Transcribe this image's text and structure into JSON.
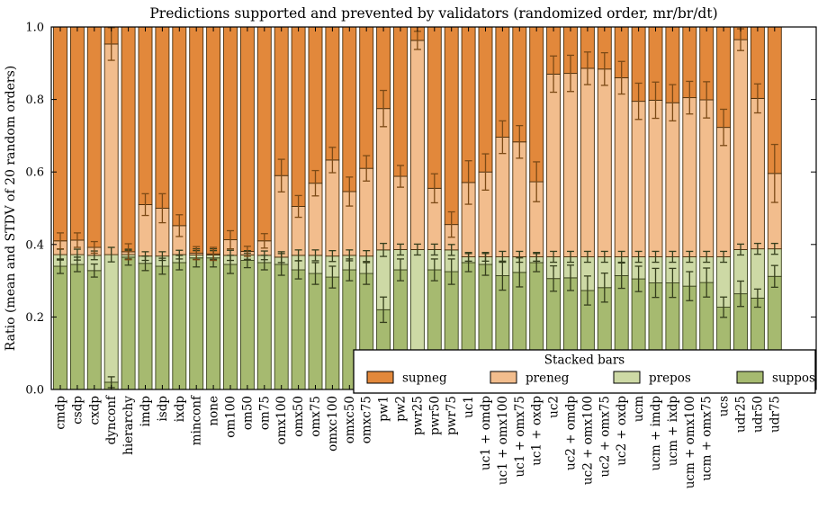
{
  "chart_data": {
    "type": "bar",
    "subtype": "stacked-vertical-with-error-bars",
    "title": "Predictions supported and prevented by validators (randomized order, mr/br/dt)",
    "xlabel": "",
    "ylabel": "Ratio (mean and STDV of 20 random orders)",
    "ylim": [
      0.0,
      1.0
    ],
    "yticks": [
      "0.0",
      "0.2",
      "0.4",
      "0.6",
      "0.8",
      "1.0"
    ],
    "grid": false,
    "legend": {
      "title": "Stacked bars",
      "position": "lower right inside axes",
      "entries": [
        "supneg",
        "preneg",
        "prepos",
        "suppos"
      ]
    },
    "stack_order_bottom_to_top": [
      "suppos",
      "prepos",
      "preneg",
      "supneg"
    ],
    "colors": {
      "supneg": "#e2883b",
      "preneg": "#f2bd8d",
      "prepos": "#cdd9a5",
      "suppos": "#a6ba70",
      "supneg_edge": "#4a2e0c",
      "preneg_edge": "#4a2e0c",
      "prepos_edge": "#3a421c",
      "suppos_edge": "#3a421c",
      "err_orange": "#7c4a16",
      "err_green": "#353e1c",
      "axis": "#000000"
    },
    "note": "Each bar stacks to 1.0. Values below are cumulative segment tops (ratios) read from the axes; err_* are STDV half-lengths of the error bar at each segment boundary.",
    "bars": [
      {
        "label": "cmdp",
        "suppos_top": 0.34,
        "prepos_top": 0.372,
        "preneg_top": 0.41,
        "supneg_top": 1.0,
        "err_suppos": 0.02,
        "err_prepos": 0.015,
        "err_preneg": 0.022
      },
      {
        "label": "csdp",
        "suppos_top": 0.345,
        "prepos_top": 0.372,
        "preneg_top": 0.412,
        "supneg_top": 1.0,
        "err_suppos": 0.02,
        "err_prepos": 0.015,
        "err_preneg": 0.02
      },
      {
        "label": "cxdp",
        "suppos_top": 0.328,
        "prepos_top": 0.37,
        "preneg_top": 0.392,
        "supneg_top": 1.0,
        "err_suppos": 0.018,
        "err_prepos": 0.012,
        "err_preneg": 0.016
      },
      {
        "label": "dynconf",
        "suppos_top": 0.02,
        "prepos_top": 0.372,
        "preneg_top": 0.953,
        "supneg_top": 1.0,
        "err_suppos": 0.015,
        "err_prepos": 0.02,
        "err_preneg": 0.045
      },
      {
        "label": "hierarchy",
        "suppos_top": 0.365,
        "prepos_top": 0.372,
        "preneg_top": 0.38,
        "supneg_top": 1.0,
        "err_suppos": 0.022,
        "err_prepos": 0.012,
        "err_preneg": 0.022
      },
      {
        "label": "imdp",
        "suppos_top": 0.348,
        "prepos_top": 0.368,
        "preneg_top": 0.51,
        "supneg_top": 1.0,
        "err_suppos": 0.02,
        "err_prepos": 0.012,
        "err_preneg": 0.03
      },
      {
        "label": "isdp",
        "suppos_top": 0.34,
        "prepos_top": 0.368,
        "preneg_top": 0.5,
        "supneg_top": 1.0,
        "err_suppos": 0.022,
        "err_prepos": 0.012,
        "err_preneg": 0.04
      },
      {
        "label": "ixdp",
        "suppos_top": 0.35,
        "prepos_top": 0.372,
        "preneg_top": 0.452,
        "supneg_top": 1.0,
        "err_suppos": 0.02,
        "err_prepos": 0.012,
        "err_preneg": 0.03
      },
      {
        "label": "minconf",
        "suppos_top": 0.363,
        "prepos_top": 0.371,
        "preneg_top": 0.376,
        "supneg_top": 1.0,
        "err_suppos": 0.025,
        "err_prepos": 0.012,
        "err_preneg": 0.018
      },
      {
        "label": "none",
        "suppos_top": 0.363,
        "prepos_top": 0.371,
        "preneg_top": 0.374,
        "supneg_top": 1.0,
        "err_suppos": 0.025,
        "err_prepos": 0.012,
        "err_preneg": 0.018
      },
      {
        "label": "om100",
        "suppos_top": 0.345,
        "prepos_top": 0.37,
        "preneg_top": 0.413,
        "supneg_top": 1.0,
        "err_suppos": 0.025,
        "err_prepos": 0.014,
        "err_preneg": 0.025
      },
      {
        "label": "om50",
        "suppos_top": 0.356,
        "prepos_top": 0.371,
        "preneg_top": 0.381,
        "supneg_top": 1.0,
        "err_suppos": 0.02,
        "err_prepos": 0.012,
        "err_preneg": 0.014
      },
      {
        "label": "om75",
        "suppos_top": 0.35,
        "prepos_top": 0.37,
        "preneg_top": 0.41,
        "supneg_top": 1.0,
        "err_suppos": 0.02,
        "err_prepos": 0.012,
        "err_preneg": 0.02
      },
      {
        "label": "omx100",
        "suppos_top": 0.345,
        "prepos_top": 0.365,
        "preneg_top": 0.59,
        "supneg_top": 1.0,
        "err_suppos": 0.03,
        "err_prepos": 0.015,
        "err_preneg": 0.045
      },
      {
        "label": "omx50",
        "suppos_top": 0.33,
        "prepos_top": 0.37,
        "preneg_top": 0.505,
        "supneg_top": 1.0,
        "err_suppos": 0.025,
        "err_prepos": 0.015,
        "err_preneg": 0.03
      },
      {
        "label": "omx75",
        "suppos_top": 0.32,
        "prepos_top": 0.37,
        "preneg_top": 0.569,
        "supneg_top": 1.0,
        "err_suppos": 0.03,
        "err_prepos": 0.015,
        "err_preneg": 0.035
      },
      {
        "label": "omxc100",
        "suppos_top": 0.31,
        "prepos_top": 0.368,
        "preneg_top": 0.633,
        "supneg_top": 1.0,
        "err_suppos": 0.03,
        "err_prepos": 0.015,
        "err_preneg": 0.035
      },
      {
        "label": "omxc50",
        "suppos_top": 0.33,
        "prepos_top": 0.37,
        "preneg_top": 0.546,
        "supneg_top": 1.0,
        "err_suppos": 0.03,
        "err_prepos": 0.015,
        "err_preneg": 0.04
      },
      {
        "label": "omxc75",
        "suppos_top": 0.32,
        "prepos_top": 0.368,
        "preneg_top": 0.61,
        "supneg_top": 1.0,
        "err_suppos": 0.03,
        "err_prepos": 0.015,
        "err_preneg": 0.035
      },
      {
        "label": "pw1",
        "suppos_top": 0.22,
        "prepos_top": 0.385,
        "preneg_top": 0.775,
        "supneg_top": 1.0,
        "err_suppos": 0.035,
        "err_prepos": 0.018,
        "err_preneg": 0.05
      },
      {
        "label": "pw2",
        "suppos_top": 0.33,
        "prepos_top": 0.386,
        "preneg_top": 0.588,
        "supneg_top": 1.0,
        "err_suppos": 0.03,
        "err_prepos": 0.015,
        "err_preneg": 0.03
      },
      {
        "label": "pwr25",
        "suppos_top": 0.05,
        "prepos_top": 0.386,
        "preneg_top": 0.963,
        "supneg_top": 1.0,
        "err_suppos": 0.0,
        "err_prepos": 0.015,
        "err_preneg": 0.025
      },
      {
        "label": "pwr50",
        "suppos_top": 0.33,
        "prepos_top": 0.386,
        "preneg_top": 0.555,
        "supneg_top": 1.0,
        "err_suppos": 0.03,
        "err_prepos": 0.015,
        "err_preneg": 0.04
      },
      {
        "label": "pwr75",
        "suppos_top": 0.325,
        "prepos_top": 0.385,
        "preneg_top": 0.455,
        "supneg_top": 1.0,
        "err_suppos": 0.035,
        "err_prepos": 0.015,
        "err_preneg": 0.035
      },
      {
        "label": "uc1",
        "suppos_top": 0.35,
        "prepos_top": 0.366,
        "preneg_top": 0.571,
        "supneg_top": 1.0,
        "err_suppos": 0.025,
        "err_prepos": 0.012,
        "err_preneg": 0.06
      },
      {
        "label": "uc1 + omdp",
        "suppos_top": 0.345,
        "prepos_top": 0.366,
        "preneg_top": 0.6,
        "supneg_top": 1.0,
        "err_suppos": 0.03,
        "err_prepos": 0.012,
        "err_preneg": 0.05
      },
      {
        "label": "uc1 + omx100",
        "suppos_top": 0.314,
        "prepos_top": 0.366,
        "preneg_top": 0.696,
        "supneg_top": 1.0,
        "err_suppos": 0.04,
        "err_prepos": 0.015,
        "err_preneg": 0.045
      },
      {
        "label": "uc1 + omx75",
        "suppos_top": 0.323,
        "prepos_top": 0.366,
        "preneg_top": 0.683,
        "supneg_top": 1.0,
        "err_suppos": 0.04,
        "err_prepos": 0.015,
        "err_preneg": 0.045
      },
      {
        "label": "uc1 + oxdp",
        "suppos_top": 0.35,
        "prepos_top": 0.366,
        "preneg_top": 0.573,
        "supneg_top": 1.0,
        "err_suppos": 0.025,
        "err_prepos": 0.012,
        "err_preneg": 0.055
      },
      {
        "label": "uc2",
        "suppos_top": 0.306,
        "prepos_top": 0.366,
        "preneg_top": 0.87,
        "supneg_top": 1.0,
        "err_suppos": 0.035,
        "err_prepos": 0.015,
        "err_preneg": 0.05
      },
      {
        "label": "uc2 + omdp",
        "suppos_top": 0.308,
        "prepos_top": 0.366,
        "preneg_top": 0.872,
        "supneg_top": 1.0,
        "err_suppos": 0.035,
        "err_prepos": 0.015,
        "err_preneg": 0.05
      },
      {
        "label": "uc2 + omx100",
        "suppos_top": 0.273,
        "prepos_top": 0.366,
        "preneg_top": 0.886,
        "supneg_top": 1.0,
        "err_suppos": 0.04,
        "err_prepos": 0.015,
        "err_preneg": 0.045
      },
      {
        "label": "uc2 + omx75",
        "suppos_top": 0.281,
        "prepos_top": 0.366,
        "preneg_top": 0.884,
        "supneg_top": 1.0,
        "err_suppos": 0.04,
        "err_prepos": 0.015,
        "err_preneg": 0.045
      },
      {
        "label": "uc2 + oxdp",
        "suppos_top": 0.314,
        "prepos_top": 0.366,
        "preneg_top": 0.86,
        "supneg_top": 1.0,
        "err_suppos": 0.035,
        "err_prepos": 0.015,
        "err_preneg": 0.045
      },
      {
        "label": "ucm",
        "suppos_top": 0.305,
        "prepos_top": 0.366,
        "preneg_top": 0.795,
        "supneg_top": 1.0,
        "err_suppos": 0.035,
        "err_prepos": 0.015,
        "err_preneg": 0.05
      },
      {
        "label": "ucm + imdp",
        "suppos_top": 0.294,
        "prepos_top": 0.366,
        "preneg_top": 0.798,
        "supneg_top": 1.0,
        "err_suppos": 0.04,
        "err_prepos": 0.015,
        "err_preneg": 0.05
      },
      {
        "label": "ucm + ixdp",
        "suppos_top": 0.294,
        "prepos_top": 0.366,
        "preneg_top": 0.791,
        "supneg_top": 1.0,
        "err_suppos": 0.04,
        "err_prepos": 0.015,
        "err_preneg": 0.05
      },
      {
        "label": "ucm + omx100",
        "suppos_top": 0.285,
        "prepos_top": 0.366,
        "preneg_top": 0.805,
        "supneg_top": 1.0,
        "err_suppos": 0.04,
        "err_prepos": 0.015,
        "err_preneg": 0.045
      },
      {
        "label": "ucm + omx75",
        "suppos_top": 0.295,
        "prepos_top": 0.366,
        "preneg_top": 0.799,
        "supneg_top": 1.0,
        "err_suppos": 0.04,
        "err_prepos": 0.015,
        "err_preneg": 0.05
      },
      {
        "label": "ucs",
        "suppos_top": 0.227,
        "prepos_top": 0.366,
        "preneg_top": 0.723,
        "supneg_top": 1.0,
        "err_suppos": 0.028,
        "err_prepos": 0.015,
        "err_preneg": 0.05
      },
      {
        "label": "udr25",
        "suppos_top": 0.264,
        "prepos_top": 0.386,
        "preneg_top": 0.965,
        "supneg_top": 1.0,
        "err_suppos": 0.035,
        "err_prepos": 0.015,
        "err_preneg": 0.03
      },
      {
        "label": "udr50",
        "suppos_top": 0.252,
        "prepos_top": 0.388,
        "preneg_top": 0.803,
        "supneg_top": 1.0,
        "err_suppos": 0.025,
        "err_prepos": 0.015,
        "err_preneg": 0.04
      },
      {
        "label": "udr75",
        "suppos_top": 0.312,
        "prepos_top": 0.388,
        "preneg_top": 0.596,
        "supneg_top": 1.0,
        "err_suppos": 0.03,
        "err_prepos": 0.015,
        "err_preneg": 0.08
      }
    ]
  }
}
